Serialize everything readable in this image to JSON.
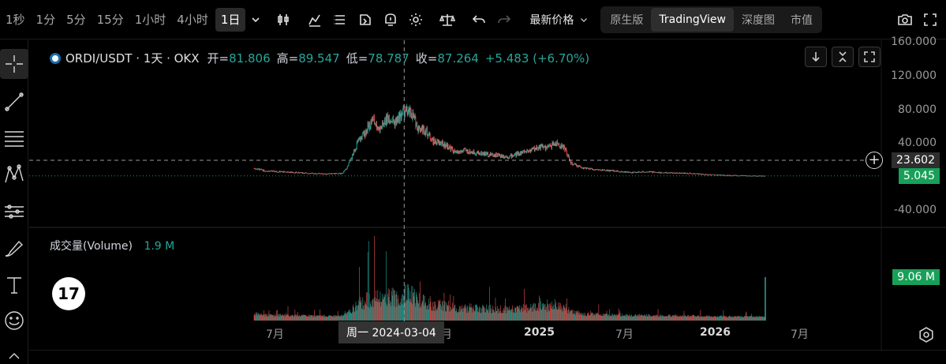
{
  "toolbar": {
    "timeframes": [
      {
        "label": "1秒",
        "active": false
      },
      {
        "label": "1分",
        "active": false
      },
      {
        "label": "5分",
        "active": false
      },
      {
        "label": "15分",
        "active": false
      },
      {
        "label": "1小时",
        "active": false
      },
      {
        "label": "4小时",
        "active": false
      },
      {
        "label": "1日",
        "active": true
      }
    ],
    "icons": [
      "chevron-down-icon",
      "candlestick-type-icon",
      "indicator-icon",
      "list-icon",
      "template-icon",
      "alert-icon",
      "settings-gear-icon",
      "scale-compare-icon",
      "undo-icon",
      "redo-icon"
    ],
    "price_type": "最新价格",
    "views": [
      {
        "label": "原生版",
        "active": false
      },
      {
        "label": "TradingView",
        "active": true
      },
      {
        "label": "深度图",
        "active": false
      },
      {
        "label": "市值",
        "active": false
      }
    ],
    "right_icons": [
      "camera-icon",
      "fullscreen-icon"
    ]
  },
  "rail": {
    "tools": [
      "crosshair-icon",
      "trendline-icon",
      "fib-lines-icon",
      "pattern-icon",
      "forecast-icon",
      "brush-icon",
      "text-icon",
      "emoji-icon"
    ],
    "collapse": "‹"
  },
  "legend": {
    "symbol": "ORDI/USDT · 1天 · OKX",
    "open_label": "开=",
    "open": "81.806",
    "high_label": "高=",
    "high": "89.547",
    "low_label": "低=",
    "low": "78.787",
    "close_label": "收=",
    "close": "87.264",
    "change": "+5.483 (+6.70%)"
  },
  "price_axis": {
    "ticks": [
      "160.000",
      "120.000",
      "80.000",
      "40.000",
      "-40.000"
    ],
    "crosshair_price": "23.602",
    "last_price": "5.045"
  },
  "volume": {
    "label": "成交量(Volume)",
    "value": "1.9 M",
    "last_tag": "9.06 M"
  },
  "time_axis": {
    "ticks": [
      {
        "label": "7月",
        "bold": false
      },
      {
        "label": "月",
        "bold": false
      },
      {
        "label": "2025",
        "bold": true
      },
      {
        "label": "7月",
        "bold": false
      },
      {
        "label": "2026",
        "bold": true
      },
      {
        "label": "7月",
        "bold": false
      }
    ],
    "crosshair_date": "周一 2024-03-04"
  },
  "tradingview_logo": "17",
  "colors": {
    "up": "#26a69a",
    "down": "#ef5350",
    "last_price": "#18a058",
    "background": "#000000"
  },
  "chart_data": {
    "type": "candlestick",
    "title": "ORDI/USDT · 1天 · OKX",
    "ylim": [
      -40,
      160
    ],
    "yticks": [
      160,
      120,
      80,
      40,
      -40
    ],
    "price_series": {
      "name": "ORDI/USDT",
      "x": [
        "2023-05-08",
        "2023-06-01",
        "2023-07-01",
        "2023-08-01",
        "2023-09-01",
        "2023-10-01",
        "2023-11-01",
        "2023-11-10",
        "2023-11-20",
        "2023-12-01",
        "2023-12-15",
        "2024-01-01",
        "2024-01-15",
        "2024-02-01",
        "2024-02-15",
        "2024-03-04",
        "2024-03-20",
        "2024-04-01",
        "2024-04-15",
        "2024-05-01",
        "2024-05-15",
        "2024-06-01",
        "2024-06-15",
        "2024-07-01",
        "2024-08-01",
        "2024-09-01",
        "2024-10-01",
        "2024-11-01",
        "2024-11-20",
        "2024-12-01",
        "2024-12-15",
        "2025-01-01",
        "2025-01-20",
        "2025-02-01",
        "2025-03-01",
        "2025-04-01",
        "2025-05-01",
        "2025-06-01",
        "2025-07-01",
        "2025-08-01",
        "2025-09-01",
        "2025-10-01",
        "2025-11-01",
        "2025-12-01",
        "2026-01-01",
        "2026-02-01",
        "2026-02-26"
      ],
      "y": [
        14,
        11,
        10,
        9,
        8,
        7.5,
        8,
        14,
        27,
        44,
        55,
        72,
        60,
        75,
        68,
        82,
        78,
        62,
        60,
        46,
        44,
        40,
        32,
        35,
        32,
        30,
        28,
        34,
        37,
        40,
        38,
        44,
        38,
        20,
        14,
        12,
        11,
        9,
        10,
        9,
        8.5,
        8,
        6.5,
        6,
        5.5,
        5.2,
        5.045
      ]
    },
    "volume_series": {
      "name": "成交量(Volume)",
      "unit": "M",
      "last": 9.06,
      "current": 1.9
    },
    "crosshair": {
      "date": "2024-03-04",
      "price": 23.602
    },
    "last_price": 5.045,
    "grid": false,
    "legend": "top-left"
  }
}
